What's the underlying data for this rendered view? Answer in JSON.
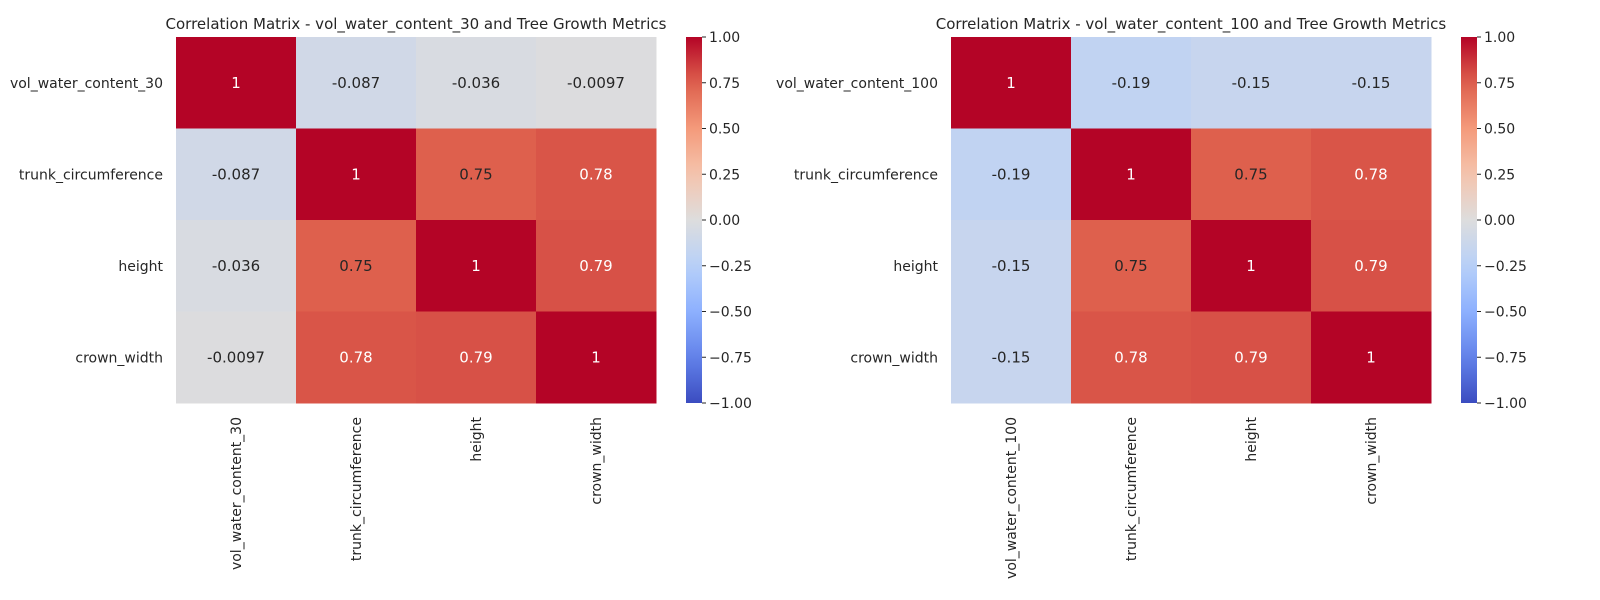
{
  "chart_data": [
    {
      "type": "heatmap",
      "title": "Correlation Matrix - vol_water_content_30 and Tree Growth Metrics",
      "row_labels": [
        "vol_water_content_30",
        "trunk_circumference",
        "height",
        "crown_width"
      ],
      "col_labels": [
        "vol_water_content_30",
        "trunk_circumference",
        "height",
        "crown_width"
      ],
      "values": [
        [
          1,
          -0.087,
          -0.036,
          -0.0097
        ],
        [
          -0.087,
          1,
          0.75,
          0.78
        ],
        [
          -0.036,
          0.75,
          1,
          0.79
        ],
        [
          -0.0097,
          0.78,
          0.79,
          1
        ]
      ],
      "annotations": [
        [
          "1",
          "-0.087",
          "-0.036",
          "-0.0097"
        ],
        [
          "-0.087",
          "1",
          "0.75",
          "0.78"
        ],
        [
          "-0.036",
          "0.75",
          "1",
          "0.79"
        ],
        [
          "-0.0097",
          "0.78",
          "0.79",
          "1"
        ]
      ],
      "colormap": "coolwarm",
      "vmin": -1,
      "vmax": 1,
      "colorbar_ticks": [
        "1.00",
        "0.75",
        "0.50",
        "0.25",
        "0.00",
        "−0.25",
        "−0.50",
        "−0.75",
        "−1.00"
      ]
    },
    {
      "type": "heatmap",
      "title": "Correlation Matrix - vol_water_content_100 and Tree Growth Metrics",
      "row_labels": [
        "vol_water_content_100",
        "trunk_circumference",
        "height",
        "crown_width"
      ],
      "col_labels": [
        "vol_water_content_100",
        "trunk_circumference",
        "height",
        "crown_width"
      ],
      "values": [
        [
          1,
          -0.19,
          -0.15,
          -0.15
        ],
        [
          -0.19,
          1,
          0.75,
          0.78
        ],
        [
          -0.15,
          0.75,
          1,
          0.79
        ],
        [
          -0.15,
          0.78,
          0.79,
          1
        ]
      ],
      "annotations": [
        [
          "1",
          "-0.19",
          "-0.15",
          "-0.15"
        ],
        [
          "-0.19",
          "1",
          "0.75",
          "0.78"
        ],
        [
          "-0.15",
          "0.75",
          "1",
          "0.79"
        ],
        [
          "-0.15",
          "0.78",
          "0.79",
          "1"
        ]
      ],
      "colormap": "coolwarm",
      "vmin": -1,
      "vmax": 1,
      "colorbar_ticks": [
        "1.00",
        "0.75",
        "0.50",
        "0.25",
        "0.00",
        "−0.25",
        "−0.50",
        "−0.75",
        "−1.00"
      ]
    }
  ]
}
